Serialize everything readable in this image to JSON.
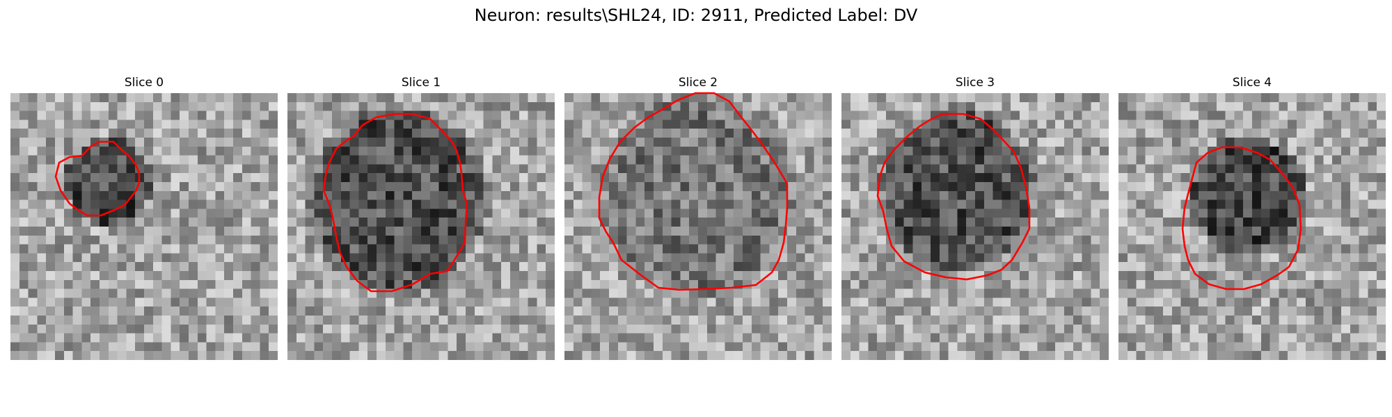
{
  "figure": {
    "suptitle": "Neuron: results\\SHL24, ID: 2911, Predicted Label: DV"
  },
  "slices": [
    {
      "title": "Slice 0"
    },
    {
      "title": "Slice 1"
    },
    {
      "title": "Slice 2"
    },
    {
      "title": "Slice 3"
    },
    {
      "title": "Slice 4"
    }
  ],
  "colors": {
    "contour": "#ff0000",
    "colormap": "gray",
    "background": "#ffffff"
  }
}
